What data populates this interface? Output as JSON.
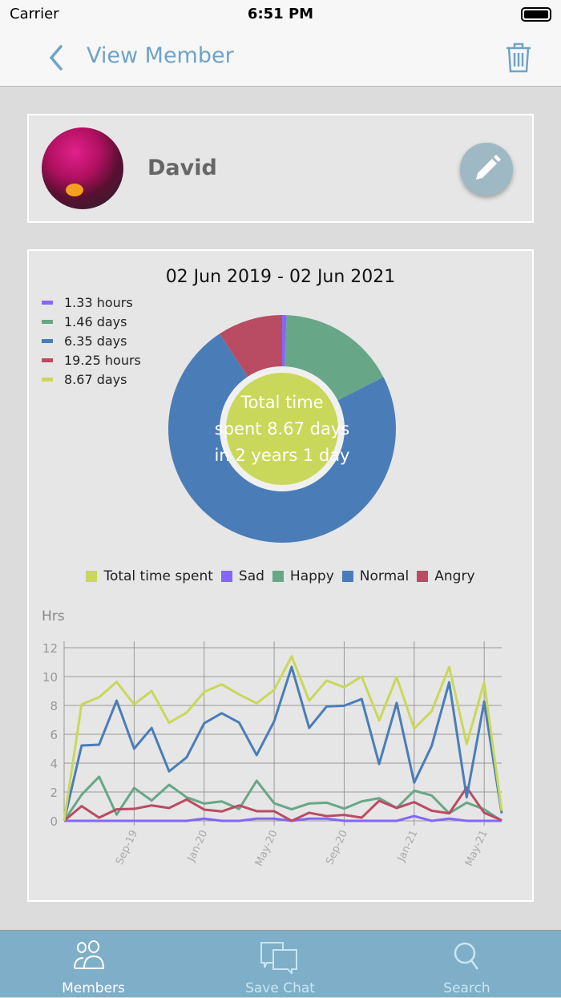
{
  "status": {
    "carrier": "Carrier",
    "time": "6:51 PM"
  },
  "nav": {
    "title": "View Member",
    "back_icon": "chevron-left-icon",
    "delete_icon": "trash-icon"
  },
  "member": {
    "name": "David",
    "edit_icon": "pencil-icon"
  },
  "colors": {
    "sad": "#8467f6",
    "happy": "#67a787",
    "normal": "#4a7db8",
    "angry": "#b94c63",
    "total": "#c9d85a",
    "accent": "#6fa3c6",
    "tabbar": "#7faec8"
  },
  "summary": {
    "range": "02 Jun 2019 - 02 Jun 2021",
    "legend": [
      {
        "label": "1.33 hours",
        "key": "sad"
      },
      {
        "label": "1.46 days",
        "key": "happy"
      },
      {
        "label": "6.35 days",
        "key": "normal"
      },
      {
        "label": "19.25 hours",
        "key": "angry"
      },
      {
        "label": "8.67 days",
        "key": "total"
      }
    ],
    "center_lines": [
      "Total time",
      "spent 8.67 days",
      "in 2 years 1 day"
    ]
  },
  "chart_data": [
    {
      "type": "pie",
      "variant": "donut",
      "slices": [
        {
          "key": "sad",
          "value_hours": 1.33
        },
        {
          "key": "happy",
          "value_hours": 35.04
        },
        {
          "key": "normal",
          "value_hours": 152.4
        },
        {
          "key": "angry",
          "value_hours": 19.25
        }
      ],
      "center_total_days": 8.67
    },
    {
      "type": "line",
      "ylabel": "Hrs",
      "ylim": [
        0,
        12
      ],
      "yticks": [
        0,
        2,
        4,
        6,
        8,
        10,
        12
      ],
      "grid": true,
      "legend_placement": "top",
      "x": [
        "May-19",
        "Jun-19",
        "Jul-19",
        "Aug-19",
        "Sep-19",
        "Oct-19",
        "Nov-19",
        "Dec-19",
        "Jan-20",
        "Feb-20",
        "Mar-20",
        "Apr-20",
        "May-20",
        "Jun-20",
        "Jul-20",
        "Aug-20",
        "Sep-20",
        "Oct-20",
        "Nov-20",
        "Dec-20",
        "Jan-21",
        "Feb-21",
        "Mar-21",
        "Apr-21",
        "May-21",
        "Jun-21"
      ],
      "xtick_labels": [
        "Sep-19",
        "Jan-20",
        "May-20",
        "Sep-20",
        "Jan-21",
        "May-21"
      ],
      "series": [
        {
          "name": "Total time spent",
          "key": "total",
          "values": [
            0,
            8.07,
            8.57,
            9.63,
            8.07,
            9.0,
            6.8,
            7.5,
            8.94,
            9.46,
            8.76,
            8.15,
            9.07,
            11.4,
            8.33,
            9.72,
            9.26,
            10.0,
            6.96,
            9.96,
            6.4,
            7.6,
            10.67,
            5.33,
            9.6,
            0.7
          ]
        },
        {
          "name": "Sad",
          "key": "sad",
          "values": [
            0,
            0,
            0,
            0,
            0,
            0,
            0,
            0,
            0.15,
            0,
            0,
            0.15,
            0.15,
            0,
            0.15,
            0.15,
            0,
            0,
            0,
            0,
            0.33,
            0,
            0.15,
            0,
            0,
            0
          ]
        },
        {
          "name": "Happy",
          "key": "happy",
          "values": [
            0,
            1.81,
            3.06,
            0.43,
            2.28,
            1.41,
            2.5,
            1.63,
            1.2,
            1.35,
            0.83,
            2.78,
            1.22,
            0.8,
            1.2,
            1.26,
            0.85,
            1.35,
            1.57,
            0.89,
            2.09,
            1.76,
            0.52,
            1.26,
            0.8,
            0
          ]
        },
        {
          "name": "Normal",
          "key": "normal",
          "values": [
            0,
            5.22,
            5.28,
            8.33,
            5.0,
            6.44,
            3.43,
            4.4,
            6.76,
            7.46,
            6.81,
            4.56,
            6.9,
            10.67,
            6.44,
            7.93,
            7.98,
            8.44,
            3.94,
            8.17,
            2.65,
            5.19,
            9.6,
            1.63,
            8.26,
            0.52
          ]
        },
        {
          "name": "Angry",
          "key": "angry",
          "values": [
            0,
            1.02,
            0.22,
            0.8,
            0.83,
            1.07,
            0.89,
            1.48,
            0.78,
            0.65,
            1.07,
            0.67,
            0.67,
            0,
            0.56,
            0.33,
            0.41,
            0.22,
            1.39,
            0.89,
            1.3,
            0.7,
            0.52,
            2.31,
            0.56,
            0.04
          ]
        }
      ]
    }
  ],
  "tabs": [
    {
      "label": "Members",
      "icon": "members-icon",
      "active": true
    },
    {
      "label": "Save Chat",
      "icon": "chat-icon",
      "active": false
    },
    {
      "label": "Search",
      "icon": "search-icon",
      "active": false
    }
  ]
}
